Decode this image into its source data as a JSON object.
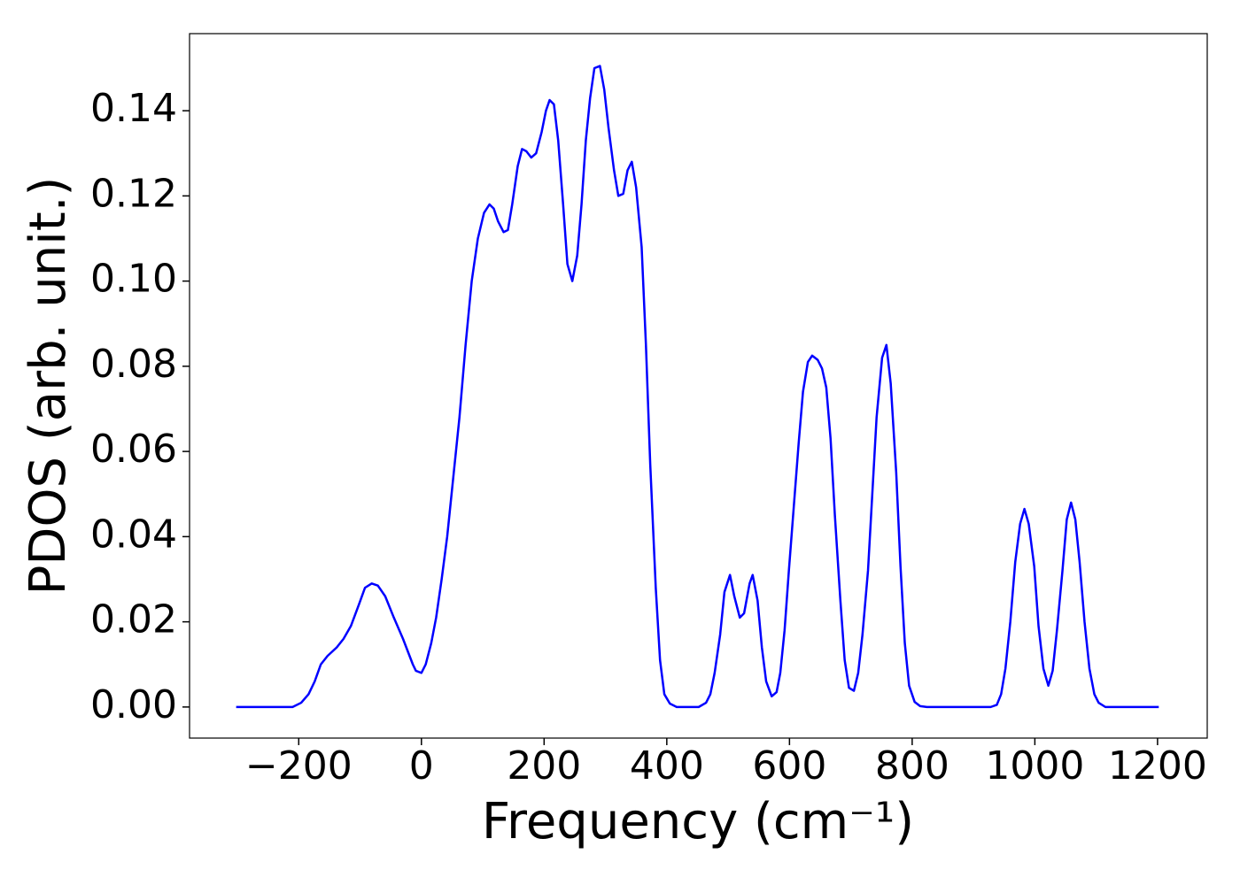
{
  "chart_data": {
    "type": "line",
    "xlabel": "Frequency (cm⁻¹)",
    "ylabel": "PDOS (arb. unit.)",
    "color": "#0000ff",
    "xlim": [
      -378,
      1281
    ],
    "ylim": [
      -0.0073,
      0.1581
    ],
    "xticks": [
      {
        "value": -200,
        "label": "−200"
      },
      0,
      200,
      400,
      600,
      800,
      1000,
      1200
    ],
    "yticks": [
      {
        "value": 0,
        "label": "0.00"
      },
      {
        "value": 0.02,
        "label": "0.02"
      },
      {
        "value": 0.04,
        "label": "0.04"
      },
      {
        "value": 0.06,
        "label": "0.06"
      },
      {
        "value": 0.08,
        "label": "0.08"
      },
      {
        "value": 0.1,
        "label": "0.10"
      },
      {
        "value": 0.12,
        "label": "0.12"
      },
      {
        "value": 0.14,
        "label": "0.14"
      }
    ],
    "x": [
      -302,
      -210,
      -196,
      -184,
      -174,
      -164,
      -153,
      -138,
      -127,
      -115,
      -102,
      -92,
      -81,
      -71,
      -59,
      -45,
      -30,
      -14,
      -9,
      0,
      7,
      16,
      24,
      33,
      42,
      52,
      62,
      72,
      82,
      92,
      102,
      111,
      118,
      125,
      134,
      141,
      148,
      157,
      164,
      171,
      179,
      187,
      196,
      203,
      209,
      216,
      223,
      231,
      238,
      246,
      254,
      261,
      268,
      275,
      282,
      291,
      298,
      305,
      314,
      321,
      329,
      336,
      343,
      350,
      359,
      366,
      373,
      382,
      389,
      396,
      405,
      416,
      452,
      464,
      471,
      478,
      487,
      494,
      503,
      510,
      519,
      526,
      535,
      540,
      548,
      555,
      562,
      571,
      579,
      585,
      592,
      599,
      607,
      615,
      622,
      630,
      637,
      646,
      653,
      660,
      667,
      674,
      683,
      690,
      697,
      705,
      712,
      719,
      728,
      735,
      742,
      751,
      758,
      765,
      774,
      781,
      788,
      795,
      804,
      813,
      824,
      928,
      938,
      945,
      952,
      960,
      968,
      976,
      983,
      990,
      999,
      1006,
      1014,
      1022,
      1029,
      1036,
      1045,
      1052,
      1059,
      1066,
      1073,
      1081,
      1089,
      1097,
      1104,
      1115,
      1202
    ],
    "values": [
      0,
      0,
      0.001,
      0.003,
      0.006,
      0.01,
      0.012,
      0.014,
      0.016,
      0.019,
      0.024,
      0.028,
      0.029,
      0.0285,
      0.026,
      0.021,
      0.016,
      0.01,
      0.0085,
      0.008,
      0.01,
      0.015,
      0.021,
      0.03,
      0.04,
      0.054,
      0.068,
      0.085,
      0.1,
      0.11,
      0.116,
      0.118,
      0.117,
      0.114,
      0.1115,
      0.112,
      0.118,
      0.127,
      0.131,
      0.1305,
      0.129,
      0.13,
      0.135,
      0.14,
      0.1425,
      0.1415,
      0.133,
      0.118,
      0.104,
      0.1,
      0.106,
      0.118,
      0.133,
      0.143,
      0.15,
      0.1505,
      0.145,
      0.136,
      0.126,
      0.12,
      0.1205,
      0.126,
      0.128,
      0.122,
      0.108,
      0.085,
      0.057,
      0.028,
      0.011,
      0.003,
      0.0008,
      0,
      0,
      0.001,
      0.003,
      0.008,
      0.017,
      0.027,
      0.031,
      0.026,
      0.021,
      0.022,
      0.029,
      0.031,
      0.025,
      0.014,
      0.006,
      0.0025,
      0.0035,
      0.008,
      0.018,
      0.032,
      0.047,
      0.062,
      0.074,
      0.081,
      0.0825,
      0.0815,
      0.0795,
      0.075,
      0.063,
      0.045,
      0.025,
      0.011,
      0.0045,
      0.0038,
      0.008,
      0.017,
      0.032,
      0.05,
      0.068,
      0.082,
      0.085,
      0.076,
      0.055,
      0.033,
      0.015,
      0.005,
      0.0012,
      0.0002,
      0,
      0,
      0.0005,
      0.003,
      0.009,
      0.02,
      0.034,
      0.043,
      0.0465,
      0.043,
      0.033,
      0.019,
      0.009,
      0.005,
      0.0085,
      0.018,
      0.032,
      0.044,
      0.048,
      0.044,
      0.034,
      0.02,
      0.009,
      0.003,
      0.001,
      0,
      0
    ]
  }
}
